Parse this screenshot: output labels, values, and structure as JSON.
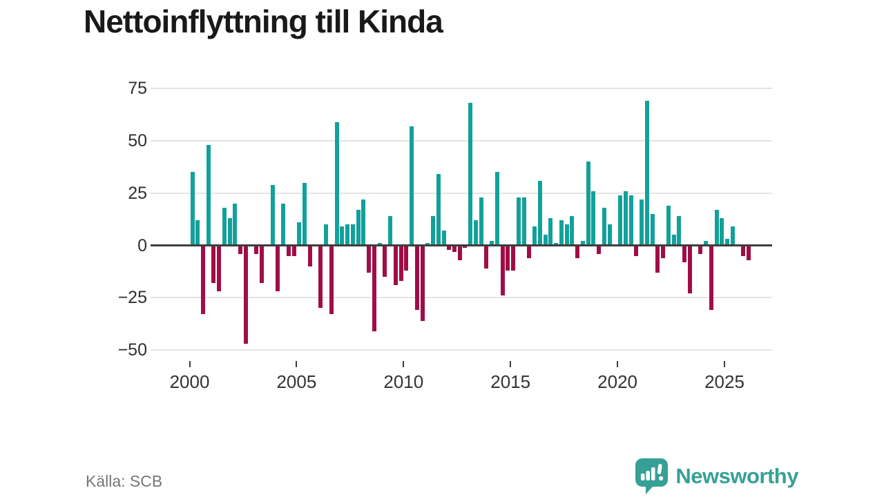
{
  "title": "Nettoinflyttning till Kinda",
  "source": "Källa: SCB",
  "branding": {
    "name": "Newsworthy",
    "icon": "newsworthy-speech-bubble-chart-icon"
  },
  "colors": {
    "positive": "#12a19a",
    "negative": "#a00d47",
    "grid": "#e4e4e4",
    "zero_line": "#3d3d3d",
    "axis_text": "#333333",
    "title_text": "#191919",
    "source_text": "#767676",
    "brand": "#36a096"
  },
  "chart_data": {
    "type": "bar",
    "title": "Nettoinflyttning till Kinda",
    "frequency": "quarterly",
    "start": "2000-Q1",
    "end": "2026-Q1",
    "grid": true,
    "legend": false,
    "ylim": [
      -55,
      80
    ],
    "y_ticks": [
      75,
      50,
      25,
      0,
      -25,
      -50
    ],
    "y_tick_labels": [
      "75",
      "50",
      "25",
      "0",
      "−25",
      "−50"
    ],
    "x_tick_labels": [
      "2000",
      "2005",
      "2010",
      "2015",
      "2020",
      "2025"
    ],
    "values": [
      35,
      12,
      -33,
      48,
      -18,
      -22,
      18,
      13,
      20,
      -4,
      -47,
      0,
      -4,
      -18,
      0,
      29,
      -22,
      20,
      -5,
      -5,
      11,
      30,
      -10,
      0,
      -30,
      10,
      -33,
      59,
      9,
      10,
      10,
      17,
      22,
      -13,
      -41,
      1,
      -15,
      14,
      -19,
      -17,
      -12,
      57,
      -31,
      -36,
      1,
      14,
      34,
      7,
      -2,
      -3,
      -7,
      -1,
      68,
      12,
      23,
      -11,
      2,
      35,
      -24,
      -12,
      -12,
      23,
      23,
      -6,
      9,
      31,
      5,
      13,
      1,
      12,
      10,
      14,
      -6,
      2,
      40,
      26,
      -4,
      18,
      10,
      0,
      24,
      26,
      24,
      -5,
      22,
      69,
      15,
      -13,
      -6,
      19,
      5,
      14,
      -8,
      -23,
      0,
      -4,
      2,
      -31,
      17,
      13,
      3,
      9,
      0,
      -5,
      -7
    ]
  }
}
